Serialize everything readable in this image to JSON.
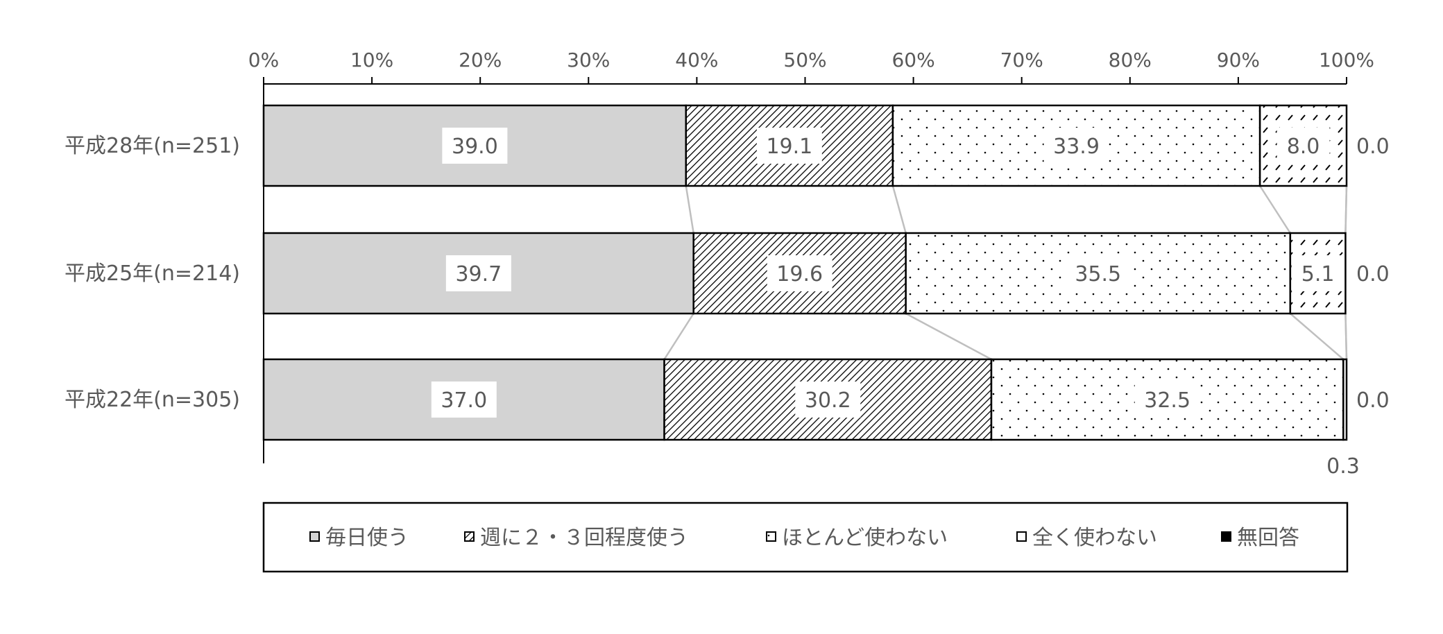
{
  "colors": {
    "axis": "#000000",
    "text": "#595959",
    "bar_solid_fill": "#d3d3d3",
    "series_line": "#bfbfbf"
  },
  "chart_data": {
    "type": "bar",
    "orientation": "horizontal",
    "stacked": "percent",
    "title": "",
    "xlabel": "",
    "ylabel": "",
    "xlim": [
      0,
      100
    ],
    "x_ticks": [
      "0%",
      "10%",
      "20%",
      "30%",
      "40%",
      "50%",
      "60%",
      "70%",
      "80%",
      "90%",
      "100%"
    ],
    "categories": [
      "平成28年(n=251)",
      "平成25年(n=214)",
      "平成22年(n=305)"
    ],
    "series": [
      {
        "name": "毎日使う",
        "pattern": "solid-gray",
        "values": [
          39.0,
          39.7,
          37.0
        ],
        "labels": [
          "39.0",
          "39.7",
          "37.0"
        ]
      },
      {
        "name": "週に２・３回程度使う",
        "pattern": "dense-diagonal",
        "values": [
          19.1,
          19.6,
          30.2
        ],
        "labels": [
          "19.1",
          "19.6",
          "30.2"
        ]
      },
      {
        "name": "ほとんど使わない",
        "pattern": "dots",
        "values": [
          33.9,
          35.5,
          32.5
        ],
        "labels": [
          "33.9",
          "35.5",
          "32.5"
        ]
      },
      {
        "name": "全く使わない",
        "pattern": "sparse-diagonal",
        "values": [
          8.0,
          5.1,
          0.3
        ],
        "labels": [
          "8.0",
          "5.1",
          ""
        ]
      },
      {
        "name": "無回答",
        "pattern": "solid-black",
        "values": [
          0.0,
          0.0,
          0.0
        ],
        "labels": [
          "0.0",
          "0.0",
          "0.0"
        ]
      }
    ],
    "outside_labels": [
      "0.3"
    ],
    "series_lines": true,
    "legend_position": "bottom",
    "grid": false
  }
}
